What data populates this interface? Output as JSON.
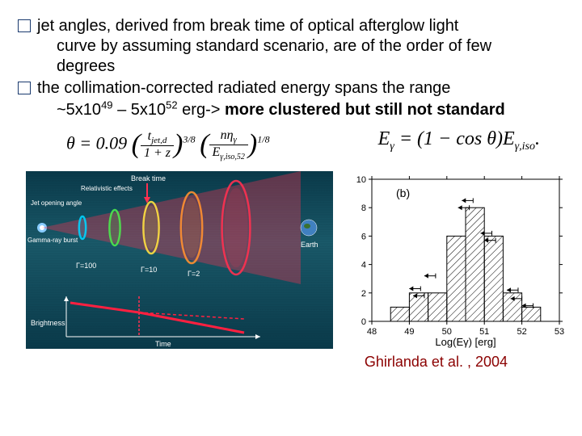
{
  "bullets": [
    {
      "line1": " jet angles, derived from break time of optical afterglow light",
      "line2": "curve by assuming standard scenario, are of the order of few",
      "line3": "degrees"
    },
    {
      "line1": "the  collimation-corrected radiated energy spans the range",
      "line2_pre": "~5x10",
      "sup1": "49",
      "line2_mid": " – 5x10",
      "sup2": "52",
      "line2_post": " erg-> ",
      "line2_bold": "more clustered but still not standard"
    }
  ],
  "formula_left": {
    "theta": "θ = 0.09",
    "frac_top": "t",
    "frac_top_sub": "jet,d",
    "frac_bot": "1 + z",
    "exp1": "3/8",
    "frac2_top": "nη",
    "frac2_top_sub": "γ",
    "frac2_bot": "E",
    "frac2_bot_sub": "γ,iso,52",
    "exp2": "1/8"
  },
  "formula_right": {
    "lhs": "E",
    "lhs_sub": "γ",
    "mid": " = (1 − cos θ)E",
    "rhs_sub": "γ,iso",
    "end": "."
  },
  "jet_diagram": {
    "bg_gradient_top": "#0a3a4a",
    "bg_gradient_mid": "#1a5a6a",
    "labels": {
      "break_time": "Break time",
      "relativistic": "Relativistic effects",
      "jet_opening": "Jet opening angle",
      "gamma_burst": "Gamma-ray burst",
      "g100": "Γ=100",
      "g10": "Γ=10",
      "g2": "Γ=2",
      "earth": "Earth",
      "brightness": "Brightness",
      "time": "Time"
    },
    "cone_colors": [
      "#00d4ff",
      "#4de84d",
      "#ffe040",
      "#ff9030",
      "#ff3050"
    ],
    "break_arrow_color": "#ff3050",
    "curve_color": "#ff2040",
    "earth_color": "#4080c0"
  },
  "histogram": {
    "panel_label": "(b)",
    "xlabel": "Log(Eγ)  [erg]",
    "xlim": [
      48,
      53
    ],
    "xticks": [
      48,
      49,
      50,
      51,
      52,
      53
    ],
    "ylim": [
      0,
      10
    ],
    "yticks": [
      0,
      2,
      4,
      6,
      8,
      10
    ],
    "bin_width": 0.5,
    "bins": [
      {
        "x": 48.5,
        "count": 1
      },
      {
        "x": 49.0,
        "count": 2
      },
      {
        "x": 49.5,
        "count": 2
      },
      {
        "x": 50.0,
        "count": 6
      },
      {
        "x": 50.5,
        "count": 8
      },
      {
        "x": 51.0,
        "count": 6
      },
      {
        "x": 51.5,
        "count": 2
      },
      {
        "x": 52.0,
        "count": 1
      }
    ],
    "hatch_color": "#000",
    "arrow_color": "#000",
    "axis_color": "#000",
    "tick_fontsize": 11,
    "label_fontsize": 13
  },
  "citation": "Ghirlanda et al. , 2004",
  "citation_color": "#8b0000"
}
